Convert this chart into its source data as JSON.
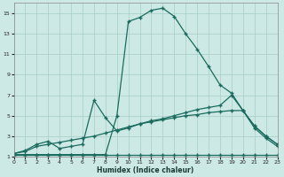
{
  "xlabel": "Humidex (Indice chaleur)",
  "bg_color": "#cde9e5",
  "line_color": "#1a6b5e",
  "grid_color": "#a8cdc8",
  "xlim": [
    0,
    23
  ],
  "ylim": [
    1,
    16
  ],
  "xticks": [
    0,
    1,
    2,
    3,
    4,
    5,
    6,
    7,
    8,
    9,
    10,
    11,
    12,
    13,
    14,
    15,
    16,
    17,
    18,
    19,
    20,
    21,
    22,
    23
  ],
  "yticks": [
    1,
    3,
    5,
    7,
    9,
    11,
    13,
    15
  ],
  "line1_x": [
    0,
    1,
    2,
    3,
    4,
    5,
    6,
    7,
    8,
    9,
    10,
    11,
    12,
    13,
    14,
    15,
    16,
    17,
    18,
    19,
    20,
    21,
    22,
    23
  ],
  "line1_y": [
    1.2,
    1.2,
    1.2,
    1.2,
    1.2,
    1.2,
    1.2,
    1.2,
    1.2,
    1.2,
    1.2,
    1.2,
    1.2,
    1.2,
    1.2,
    1.2,
    1.2,
    1.2,
    1.2,
    1.2,
    1.2,
    1.2,
    1.2,
    1.2
  ],
  "line2_x": [
    0,
    1,
    2,
    3,
    4,
    5,
    6,
    7,
    8,
    9,
    10,
    11,
    12,
    13,
    14,
    15,
    16,
    17,
    18,
    19,
    20,
    21,
    22,
    23
  ],
  "line2_y": [
    1.3,
    1.5,
    2.0,
    2.2,
    2.4,
    2.6,
    2.8,
    3.0,
    3.3,
    3.6,
    3.9,
    4.2,
    4.4,
    4.6,
    4.8,
    5.0,
    5.1,
    5.3,
    5.4,
    5.5,
    5.5,
    4.0,
    3.0,
    2.2
  ],
  "line3_x": [
    0,
    1,
    2,
    3,
    4,
    5,
    6,
    7,
    8,
    9,
    10,
    11,
    12,
    13,
    14,
    15,
    16,
    17,
    18,
    19,
    20,
    21,
    22,
    23
  ],
  "line3_y": [
    1.3,
    1.6,
    2.2,
    2.5,
    1.8,
    2.0,
    2.2,
    6.5,
    4.8,
    3.5,
    3.8,
    4.2,
    4.5,
    4.7,
    5.0,
    5.3,
    5.6,
    5.8,
    6.0,
    7.0,
    5.5,
    4.0,
    3.0,
    2.2
  ],
  "line4_x": [
    0,
    1,
    2,
    3,
    4,
    5,
    6,
    7,
    8,
    9,
    10,
    11,
    12,
    13,
    14,
    15,
    16,
    17,
    18,
    19,
    20,
    21,
    22,
    23
  ],
  "line4_y": [
    1.2,
    1.2,
    1.2,
    1.2,
    1.2,
    1.2,
    1.2,
    1.2,
    1.2,
    5.0,
    14.2,
    14.6,
    15.3,
    15.5,
    14.7,
    13.0,
    11.5,
    9.8,
    8.0,
    7.2,
    5.5,
    3.8,
    2.8,
    2.0
  ]
}
